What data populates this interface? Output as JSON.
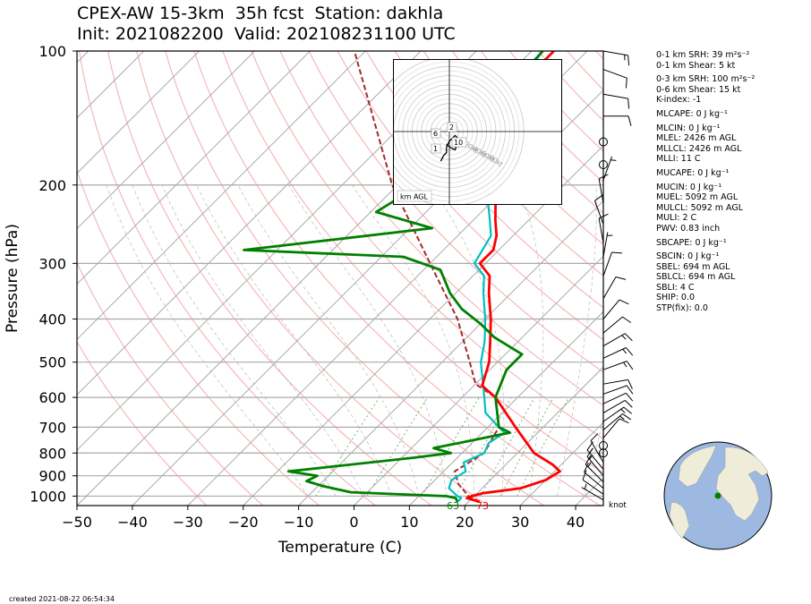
{
  "header": {
    "line1": "CPEX-AW 15-3km  35h fcst  Station: dakhla",
    "line2": "Init: 2021082200  Valid: 2021082311​00 UTC"
  },
  "footer": {
    "created": "created 2021-08-22 06:54:34"
  },
  "barb_unit": "knot",
  "hodograph": {
    "speed_rings": [
      "20kt",
      "40kt",
      "60kt",
      "80kt"
    ],
    "height_labels": [
      "6",
      "2",
      "10",
      "1"
    ],
    "legend": "km AGL"
  },
  "indices": [
    "0-1 km SRH: 39 m²s⁻²",
    "0-1 km Shear: 5 kt",
    "0-3 km SRH: 100 m²s⁻²",
    "0-6 km Shear: 15 kt",
    "K-index: -1",
    "MLCAPE: 0 J kg⁻¹",
    "MLCIN: 0 J kg⁻¹",
    "MLEL: 2426 m AGL",
    "MLLCL: 2426 m AGL",
    "MLLI: 11 C",
    "MUCAPE: 0 J kg⁻¹",
    "MUCIN: 0 J kg⁻¹",
    "MUEL: 5092 m AGL",
    "MULCL: 5092 m AGL",
    "MULI: 2 C",
    "PWV: 0.83 inch",
    "SBCAPE: 0 J kg⁻¹",
    "SBCIN: 0 J kg⁻¹",
    "SBEL: 694 m AGL",
    "SBLCL: 694 m AGL",
    "SBLI: 4 C",
    "SHIP: 0.0",
    "STP(fix): 0.0"
  ],
  "colors": {
    "temperature": "#ff0000",
    "dewpoint": "#008000",
    "virtual_temp": "#00c0c0",
    "parcel": "#a52a2a",
    "isobar": "#aaaaaa",
    "dry_adiabat": "#f4a6a6",
    "mixing_ratio": "#60b060"
  },
  "chart_data": {
    "type": "skew-t",
    "xlabel": "Temperature (C)",
    "ylabel": "Pressure (hPa)",
    "xlim": [
      -50,
      45
    ],
    "ylim": [
      1050,
      100
    ],
    "xticks": [
      -50,
      -40,
      -30,
      -20,
      -10,
      0,
      10,
      20,
      30,
      40
    ],
    "yticks": [
      100,
      200,
      300,
      400,
      500,
      600,
      700,
      800,
      900,
      1000
    ],
    "surface_dewpoint_label": "63",
    "surface_temperature_label": "73",
    "temperature": [
      [
        1030,
        22
      ],
      [
        1010,
        19
      ],
      [
        1000,
        19.5
      ],
      [
        985,
        21
      ],
      [
        960,
        27
      ],
      [
        920,
        30
      ],
      [
        880,
        31
      ],
      [
        850,
        28.5
      ],
      [
        800,
        23
      ],
      [
        700,
        15
      ],
      [
        600,
        6
      ],
      [
        565,
        1.5
      ],
      [
        500,
        -1.5
      ],
      [
        450,
        -5
      ],
      [
        400,
        -9
      ],
      [
        350,
        -14
      ],
      [
        320,
        -17
      ],
      [
        300,
        -21
      ],
      [
        280,
        -21
      ],
      [
        260,
        -23
      ],
      [
        240,
        -26
      ],
      [
        220,
        -29
      ],
      [
        200,
        -33
      ],
      [
        180,
        -38
      ],
      [
        160,
        -44
      ],
      [
        140,
        -45
      ],
      [
        120,
        -46
      ],
      [
        100,
        -46
      ]
    ],
    "dewpoint": [
      [
        1030,
        18
      ],
      [
        1010,
        17
      ],
      [
        1000,
        15
      ],
      [
        980,
        -3
      ],
      [
        950,
        -9
      ],
      [
        925,
        -13
      ],
      [
        900,
        -12
      ],
      [
        880,
        -18
      ],
      [
        820,
        2
      ],
      [
        800,
        8
      ],
      [
        780,
        4
      ],
      [
        720,
        15
      ],
      [
        700,
        12
      ],
      [
        600,
        6
      ],
      [
        520,
        3
      ],
      [
        480,
        3
      ],
      [
        440,
        -5
      ],
      [
        410,
        -10
      ],
      [
        380,
        -16
      ],
      [
        350,
        -21
      ],
      [
        310,
        -27
      ],
      [
        290,
        -36
      ],
      [
        280,
        -66
      ],
      [
        250,
        -36
      ],
      [
        230,
        -49
      ],
      [
        200,
        -46
      ],
      [
        180,
        -45
      ],
      [
        160,
        -37
      ],
      [
        140,
        -43
      ],
      [
        120,
        -47
      ],
      [
        100,
        -48
      ]
    ],
    "virtual_temperature": [
      [
        1030,
        18
      ],
      [
        1010,
        18
      ],
      [
        1000,
        17
      ],
      [
        960,
        14
      ],
      [
        920,
        13
      ],
      [
        880,
        14
      ],
      [
        840,
        12
      ],
      [
        800,
        14
      ],
      [
        760,
        13
      ],
      [
        720,
        14
      ],
      [
        700,
        12
      ],
      [
        650,
        7
      ],
      [
        600,
        4
      ],
      [
        500,
        -3
      ],
      [
        450,
        -6
      ],
      [
        400,
        -10
      ],
      [
        350,
        -15
      ],
      [
        320,
        -18
      ],
      [
        300,
        -22
      ],
      [
        260,
        -24
      ],
      [
        240,
        -27
      ],
      [
        200,
        -34
      ],
      [
        160,
        -44
      ],
      [
        140,
        -47
      ],
      [
        120,
        -48
      ],
      [
        100,
        -48
      ]
    ],
    "parcel": [
      [
        1030,
        22
      ],
      [
        1000,
        19
      ],
      [
        940,
        15
      ],
      [
        880,
        12
      ],
      [
        800,
        14
      ],
      [
        700,
        12
      ],
      [
        600,
        6
      ],
      [
        560,
        0
      ],
      [
        500,
        -5
      ],
      [
        400,
        -15
      ],
      [
        300,
        -30
      ],
      [
        200,
        -51
      ],
      [
        100,
        -82
      ]
    ],
    "wind_barbs": [
      {
        "p": 1020,
        "speed": 5,
        "dir": 300
      },
      {
        "p": 990,
        "speed": 10,
        "dir": 305
      },
      {
        "p": 960,
        "speed": 10,
        "dir": 310
      },
      {
        "p": 930,
        "speed": 15,
        "dir": 315
      },
      {
        "p": 900,
        "speed": 15,
        "dir": 320
      },
      {
        "p": 870,
        "speed": 15,
        "dir": 320
      },
      {
        "p": 840,
        "speed": 10,
        "dir": 330
      },
      {
        "p": 800,
        "speed": 0,
        "dir": 0
      },
      {
        "p": 770,
        "speed": 0,
        "dir": 0
      },
      {
        "p": 740,
        "speed": 10,
        "dir": 40
      },
      {
        "p": 710,
        "speed": 15,
        "dir": 50
      },
      {
        "p": 680,
        "speed": 15,
        "dir": 55
      },
      {
        "p": 650,
        "speed": 10,
        "dir": 60
      },
      {
        "p": 620,
        "speed": 10,
        "dir": 65
      },
      {
        "p": 590,
        "speed": 10,
        "dir": 70
      },
      {
        "p": 560,
        "speed": 10,
        "dir": 80
      },
      {
        "p": 520,
        "speed": 15,
        "dir": 70
      },
      {
        "p": 490,
        "speed": 15,
        "dir": 65
      },
      {
        "p": 460,
        "speed": 15,
        "dir": 60
      },
      {
        "p": 430,
        "speed": 10,
        "dir": 50
      },
      {
        "p": 400,
        "speed": 10,
        "dir": 40
      },
      {
        "p": 360,
        "speed": 10,
        "dir": 30
      },
      {
        "p": 320,
        "speed": 10,
        "dir": 20
      },
      {
        "p": 290,
        "speed": 5,
        "dir": 10
      },
      {
        "p": 270,
        "speed": 10,
        "dir": 350
      },
      {
        "p": 245,
        "speed": 10,
        "dir": 340
      },
      {
        "p": 220,
        "speed": 10,
        "dir": 350
      },
      {
        "p": 195,
        "speed": 5,
        "dir": 20
      },
      {
        "p": 180,
        "speed": 0,
        "dir": 0
      },
      {
        "p": 160,
        "speed": 0,
        "dir": 0
      },
      {
        "p": 140,
        "speed": 10,
        "dir": 90
      },
      {
        "p": 125,
        "speed": 10,
        "dir": 100
      },
      {
        "p": 110,
        "speed": 10,
        "dir": 110
      },
      {
        "p": 100,
        "speed": 15,
        "dir": 100
      }
    ],
    "hodograph_points": [
      [
        -3,
        -6
      ],
      [
        -2,
        -4
      ],
      [
        -1,
        -3
      ],
      [
        -1,
        -1
      ],
      [
        0,
        1
      ],
      [
        1,
        2
      ],
      [
        2,
        3
      ],
      [
        3,
        2
      ],
      [
        4,
        0
      ],
      [
        3,
        1
      ],
      [
        2,
        -2
      ],
      [
        0,
        -1
      ],
      [
        -1,
        0
      ]
    ]
  },
  "globe": {
    "marker": "station",
    "marker_color": "#008000"
  }
}
